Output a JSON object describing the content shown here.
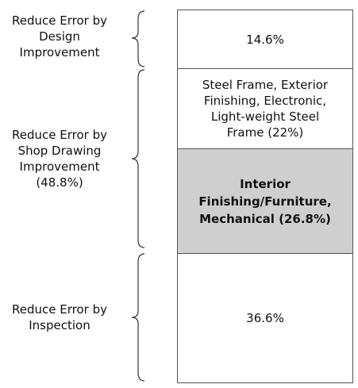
{
  "categories": [
    {
      "lines": [
        "Reduce Error by",
        "Design",
        "Improvement"
      ]
    },
    {
      "lines": [
        "Reduce Error by",
        "Shop Drawing",
        "Improvement",
        "(48.8%)"
      ]
    },
    {
      "lines": [
        "Reduce Error by",
        "Inspection"
      ]
    }
  ],
  "segments": {
    "design": {
      "lines": [
        "14.6%"
      ]
    },
    "steel": {
      "lines": [
        "Steel Frame, Exterior",
        "Finishing, Electronic,",
        "Light-weight Steel",
        "Frame (22%)"
      ]
    },
    "interior": {
      "lines": [
        "Interior",
        "Finishing/Furniture,",
        "Mechanical (26.8%)"
      ]
    },
    "inspection": {
      "lines": [
        "36.6%"
      ]
    }
  },
  "colors": {
    "highlight": "#cfcfcf",
    "border": "#555555"
  }
}
